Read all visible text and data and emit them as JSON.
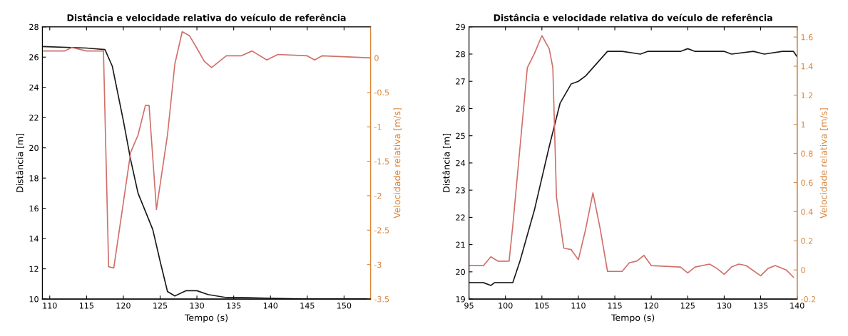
{
  "chart_data": [
    {
      "type": "line",
      "title": "Distância e velocidade relativa do veículo de referência",
      "xlabel": "Tempo (s)",
      "ylabel": "Distância [m]",
      "y2label": "Velocidade relativa [m/s]",
      "xlim": [
        109,
        153.6
      ],
      "xticks": [
        110,
        115,
        120,
        125,
        130,
        135,
        140,
        145,
        150
      ],
      "ylim": [
        10,
        28
      ],
      "yticks": [
        10,
        12,
        14,
        16,
        18,
        20,
        22,
        24,
        26,
        28
      ],
      "y2lim": [
        -3.5,
        0.45
      ],
      "y2ticks": [
        -3.5,
        -3,
        -2.5,
        -2,
        -1.5,
        -1,
        -0.5,
        0
      ],
      "grid": false,
      "legend": false,
      "series": [
        {
          "color": "#1a1a1a",
          "x": [
            109,
            115,
            117.5,
            118.5,
            120,
            121,
            122,
            124,
            125,
            126,
            127,
            128.5,
            130,
            131.5,
            134,
            136,
            140,
            145,
            153.6
          ],
          "values": [
            26.7,
            26.6,
            26.5,
            25.4,
            21.8,
            19.2,
            17.0,
            14.6,
            12.5,
            10.5,
            10.2,
            10.55,
            10.55,
            10.3,
            10.1,
            10.1,
            10.05,
            10.0,
            10.0
          ]
        },
        {
          "color": "#d0706a",
          "axis": "y2",
          "x": [
            109,
            112,
            113,
            115,
            117.3,
            118,
            118.7,
            120,
            121,
            122,
            123,
            123.5,
            124.5,
            126,
            127,
            128,
            129,
            130,
            131,
            132,
            134,
            136,
            137.5,
            139.5,
            141,
            145,
            146,
            147,
            153.6
          ],
          "values": [
            0.1,
            0.1,
            0.15,
            0.1,
            0.1,
            -3.03,
            -3.05,
            -2.1,
            -1.37,
            -1.12,
            -0.69,
            -0.69,
            -2.2,
            -1.12,
            -0.09,
            0.38,
            0.32,
            0.14,
            -0.05,
            -0.14,
            0.03,
            0.03,
            0.1,
            -0.03,
            0.05,
            0.03,
            -0.03,
            0.03,
            0
          ]
        }
      ]
    },
    {
      "type": "line",
      "title": "Distância e velocidade relativa do veículo de referência",
      "xlabel": "Tempo (s)",
      "ylabel": "Distância [m]",
      "y2label": "Velocidade relativa [m/s]",
      "xlim": [
        95,
        140
      ],
      "xticks": [
        95,
        100,
        105,
        110,
        115,
        120,
        125,
        130,
        135,
        140
      ],
      "ylim": [
        19,
        29
      ],
      "yticks": [
        19,
        20,
        21,
        22,
        23,
        24,
        25,
        26,
        27,
        28,
        29
      ],
      "y2lim": [
        -0.2,
        1.67
      ],
      "y2ticks": [
        -0.2,
        0,
        0.2,
        0.4,
        0.6,
        0.8,
        1,
        1.2,
        1.4,
        1.6
      ],
      "grid": false,
      "legend": false,
      "series": [
        {
          "color": "#1a1a1a",
          "x": [
            95,
            97,
            98,
            98.5,
            101,
            102,
            104,
            106,
            107.5,
            109,
            110,
            111,
            112,
            114,
            116,
            118.5,
            119.5,
            124,
            125,
            126,
            130,
            131,
            134,
            135.5,
            138,
            139.5,
            140
          ],
          "values": [
            19.6,
            19.6,
            19.5,
            19.6,
            19.6,
            20.4,
            22.3,
            24.6,
            26.2,
            26.9,
            27.0,
            27.2,
            27.5,
            28.1,
            28.1,
            28.0,
            28.1,
            28.1,
            28.2,
            28.1,
            28.1,
            28.0,
            28.1,
            28.0,
            28.1,
            28.1,
            27.9
          ]
        },
        {
          "color": "#d0706a",
          "axis": "y2",
          "x": [
            95,
            97,
            98,
            99,
            100.5,
            101,
            103,
            104,
            105,
            106,
            106.5,
            107,
            108,
            109,
            110,
            111,
            112,
            113,
            114,
            116,
            117,
            118,
            119,
            120,
            124,
            125,
            126,
            128,
            129,
            130,
            131,
            132,
            133,
            135,
            136,
            137,
            138.5,
            139.5
          ],
          "values": [
            0.03,
            0.03,
            0.09,
            0.06,
            0.06,
            0.3,
            1.39,
            1.49,
            1.61,
            1.52,
            1.39,
            0.5,
            0.15,
            0.14,
            0.07,
            0.28,
            0.53,
            0.28,
            -0.01,
            -0.01,
            0.05,
            0.06,
            0.1,
            0.03,
            0.02,
            -0.02,
            0.02,
            0.04,
            0.01,
            -0.03,
            0.02,
            0.04,
            0.03,
            -0.04,
            0.01,
            0.03,
            0.0,
            -0.05
          ]
        }
      ]
    }
  ]
}
